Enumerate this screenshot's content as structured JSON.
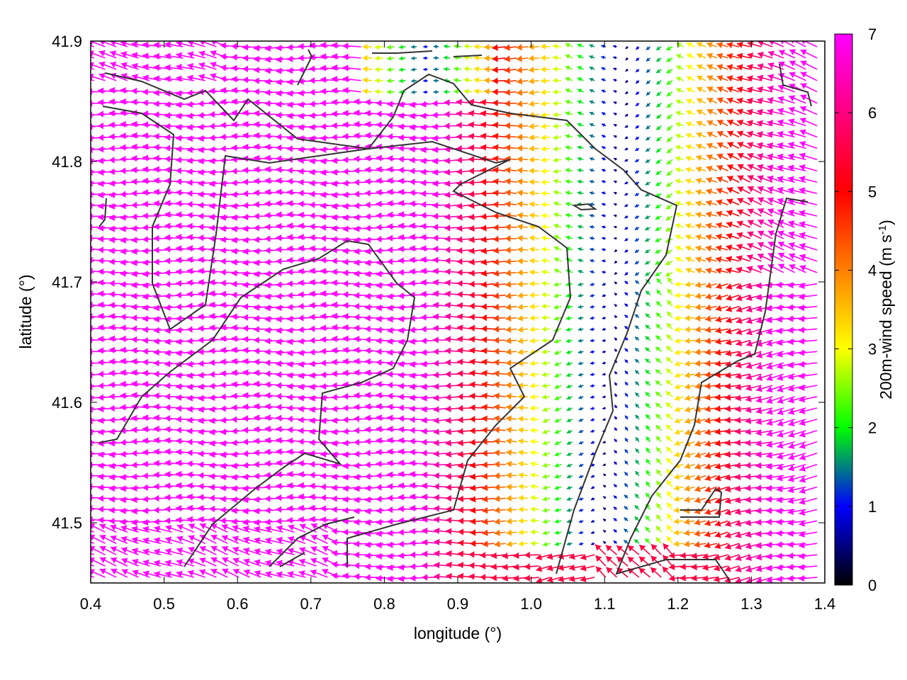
{
  "chart_data": {
    "type": "quiver",
    "xlabel": "longitude (°)",
    "ylabel": "latitude (°)",
    "xlim": [
      0.4,
      1.4
    ],
    "ylim": [
      41.45,
      41.9
    ],
    "xticks": [
      "0.4",
      "0.5",
      "0.6",
      "0.7",
      "0.8",
      "0.9",
      "1.0",
      "1.1",
      "1.2",
      "1.3",
      "1.4"
    ],
    "yticks": [
      "41.5",
      "41.6",
      "41.7",
      "41.8",
      "41.9"
    ],
    "grid": false,
    "colorbar": {
      "label": "200m-wind speed (m s",
      "label_sup": "-1",
      "label_tail": ")",
      "range": [
        0,
        7
      ],
      "ticks": [
        "0",
        "1",
        "2",
        "3",
        "4",
        "5",
        "6",
        "7"
      ],
      "colormap": [
        "#000000",
        "#0000ff",
        "#00ff00",
        "#ffff00",
        "#ff0000",
        "#ff00ff"
      ]
    },
    "wind_field": {
      "description_free": true,
      "prevailing_direction_deg": 180,
      "max_speed": 7,
      "calm_core": {
        "lon": 1.11,
        "lat_min": 41.5,
        "lat_max": 41.84
      }
    },
    "contour_color": "#333333"
  }
}
